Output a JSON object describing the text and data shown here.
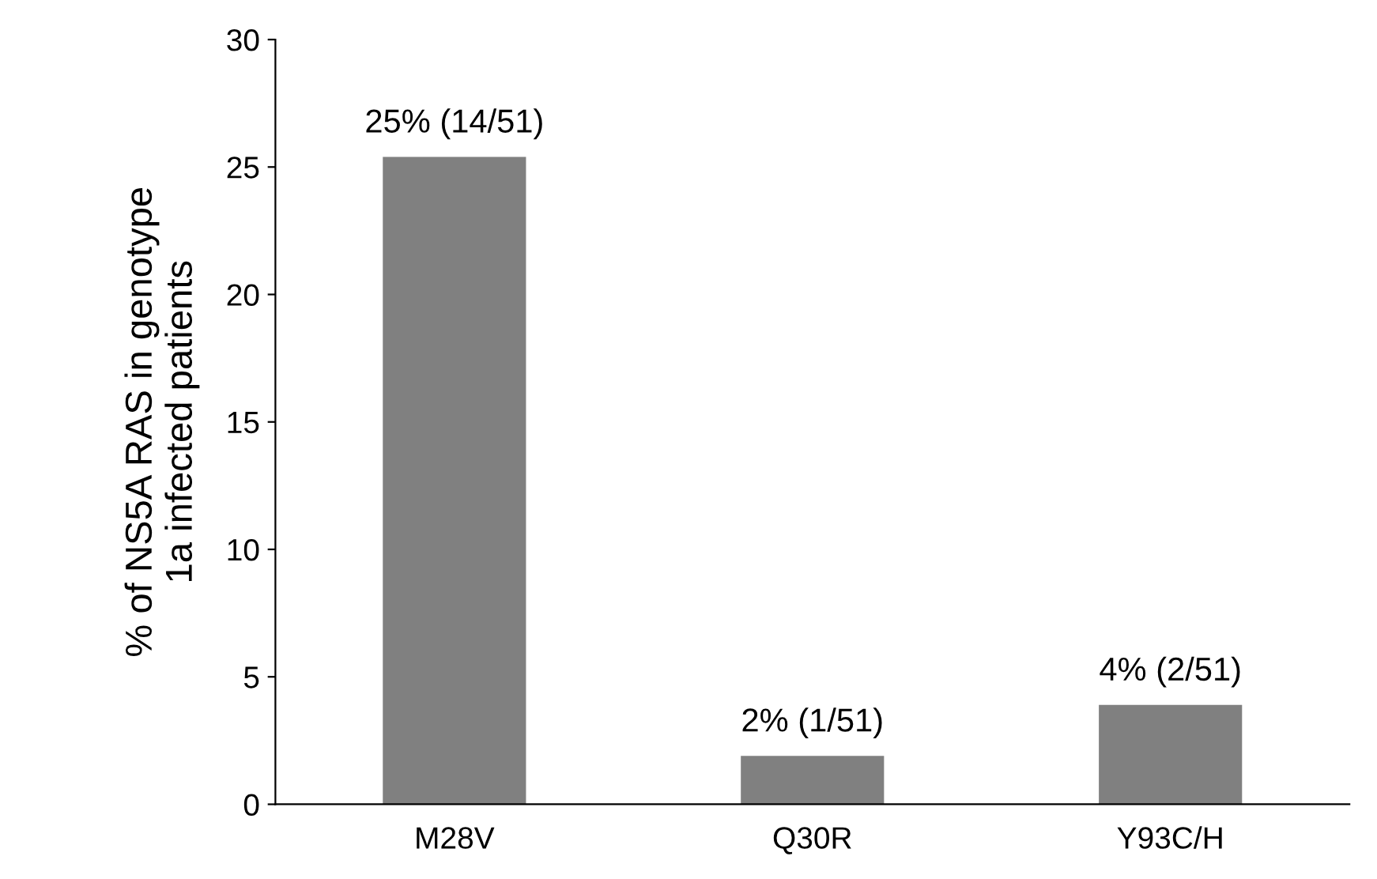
{
  "chart_data": {
    "type": "bar",
    "ylabel": "% of NS5A RAS in genotype\n1a infected patients",
    "categories": [
      "M28V",
      "Q30R",
      "Y93C/H"
    ],
    "values": [
      25.4,
      1.9,
      3.9
    ],
    "value_labels": [
      "25% (14/51)",
      "2% (1/51)",
      "4% (2/51)"
    ],
    "color": "#808080",
    "ylim": [
      0,
      30
    ],
    "yticks": [
      0,
      5,
      10,
      15,
      20,
      25,
      30
    ],
    "grid": false,
    "legend": false
  }
}
